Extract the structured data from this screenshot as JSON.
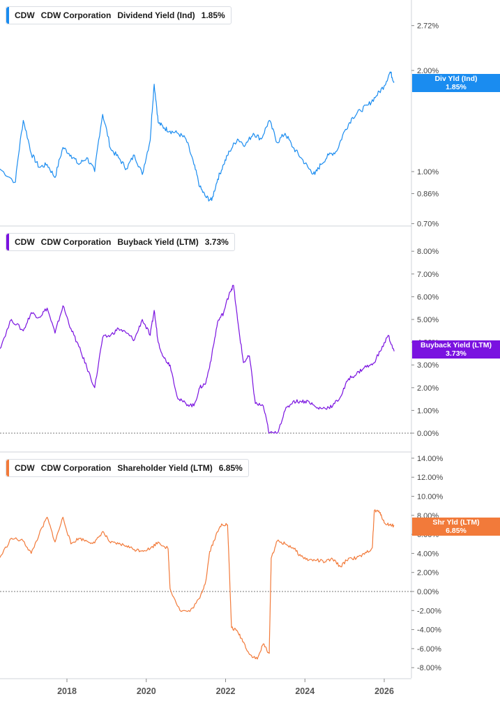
{
  "colors": {
    "dividend": "#1a8cf0",
    "buyback": "#7a12e0",
    "shareholder": "#f27a3a",
    "axis": "#888888",
    "divider": "#cfd3d8"
  },
  "xaxis": {
    "labels": [
      "2018",
      "2020",
      "2022",
      "2024",
      "2026"
    ]
  },
  "chart_data": [
    {
      "type": "line",
      "ticker": "CDW",
      "company": "CDW Corporation",
      "metric": "Dividend Yield (Ind)",
      "value": "1.85%",
      "tag": {
        "line1": "Div Yld (Ind)",
        "line2": "1.85%"
      },
      "ylabels": [
        "2.72%",
        "2.00%",
        "1.00%",
        "0.86%",
        "0.70%"
      ],
      "ylim": [
        0.7,
        2.72
      ],
      "scale": "log",
      "x": [
        2016.3,
        2016.7,
        2016.9,
        2017.1,
        2017.3,
        2017.5,
        2017.7,
        2017.9,
        2018.1,
        2018.3,
        2018.5,
        2018.7,
        2018.9,
        2019.1,
        2019.3,
        2019.5,
        2019.7,
        2019.9,
        2020.1,
        2020.2,
        2020.3,
        2020.45,
        2020.6,
        2020.8,
        2021.0,
        2021.2,
        2021.35,
        2021.5,
        2021.65,
        2021.8,
        2021.95,
        2022.1,
        2022.3,
        2022.5,
        2022.7,
        2022.9,
        2023.1,
        2023.3,
        2023.5,
        2023.7,
        2023.9,
        2024.1,
        2024.25,
        2024.4,
        2024.6,
        2024.8,
        2025.0,
        2025.2,
        2025.4,
        2025.6,
        2025.8,
        2026.0,
        2026.15,
        2026.25
      ],
      "y": [
        1.02,
        0.93,
        1.42,
        1.13,
        1.03,
        1.05,
        0.96,
        1.18,
        1.12,
        1.05,
        1.1,
        1.0,
        1.48,
        1.17,
        1.1,
        1.02,
        1.12,
        0.98,
        1.24,
        1.82,
        1.4,
        1.35,
        1.32,
        1.3,
        1.25,
        1.05,
        0.9,
        0.84,
        0.82,
        0.95,
        1.05,
        1.15,
        1.25,
        1.2,
        1.3,
        1.25,
        1.42,
        1.22,
        1.3,
        1.18,
        1.1,
        1.02,
        0.98,
        1.05,
        1.12,
        1.15,
        1.32,
        1.45,
        1.52,
        1.58,
        1.68,
        1.8,
        1.98,
        1.85
      ]
    },
    {
      "type": "line",
      "ticker": "CDW",
      "company": "CDW Corporation",
      "metric": "Buyback Yield (LTM)",
      "value": "3.73%",
      "tag": {
        "line1": "Buyback Yield (LTM)",
        "line2": "3.73%"
      },
      "ylabels": [
        "8.00%",
        "7.00%",
        "6.00%",
        "5.00%",
        "4.00%",
        "3.00%",
        "2.00%",
        "1.00%",
        "0.00%"
      ],
      "ylim": [
        0,
        8
      ],
      "scale": "linear",
      "x": [
        2016.3,
        2016.6,
        2016.9,
        2017.1,
        2017.3,
        2017.5,
        2017.7,
        2017.9,
        2018.1,
        2018.3,
        2018.5,
        2018.7,
        2018.9,
        2019.1,
        2019.3,
        2019.5,
        2019.7,
        2019.9,
        2020.1,
        2020.2,
        2020.3,
        2020.45,
        2020.6,
        2020.8,
        2021.0,
        2021.2,
        2021.35,
        2021.5,
        2021.65,
        2021.8,
        2021.95,
        2022.1,
        2022.2,
        2022.3,
        2022.45,
        2022.6,
        2022.75,
        2022.95,
        2023.1,
        2023.3,
        2023.5,
        2023.7,
        2023.9,
        2024.1,
        2024.3,
        2024.5,
        2024.7,
        2024.9,
        2025.1,
        2025.3,
        2025.5,
        2025.7,
        2025.9,
        2026.1,
        2026.25
      ],
      "y": [
        3.7,
        5.0,
        4.5,
        5.3,
        5.1,
        5.5,
        4.4,
        5.6,
        4.6,
        3.8,
        2.9,
        2.0,
        4.2,
        4.3,
        4.6,
        4.4,
        4.1,
        5.0,
        4.3,
        5.4,
        4.0,
        3.3,
        3.0,
        1.5,
        1.3,
        1.2,
        2.0,
        2.2,
        3.4,
        4.9,
        5.3,
        6.2,
        6.5,
        5.0,
        3.1,
        3.4,
        1.3,
        1.2,
        0.0,
        0.0,
        1.0,
        1.4,
        1.4,
        1.4,
        1.1,
        1.1,
        1.2,
        1.6,
        2.4,
        2.6,
        2.9,
        3.0,
        3.6,
        4.3,
        3.6
      ]
    },
    {
      "type": "line",
      "ticker": "CDW",
      "company": "CDW Corporation",
      "metric": "Shareholder Yield (LTM)",
      "value": "6.85%",
      "tag": {
        "line1": "Shr Yld (LTM)",
        "line2": "6.85%"
      },
      "ylabels": [
        "14.00%",
        "12.00%",
        "10.00%",
        "8.00%",
        "6.00%",
        "4.00%",
        "2.00%",
        "0.00%",
        "-2.00%",
        "-4.00%",
        "-6.00%",
        "-8.00%"
      ],
      "ylim": [
        -8,
        14
      ],
      "scale": "linear",
      "x": [
        2016.3,
        2016.6,
        2016.9,
        2017.1,
        2017.3,
        2017.5,
        2017.7,
        2017.9,
        2018.1,
        2018.3,
        2018.5,
        2018.7,
        2018.9,
        2019.1,
        2019.3,
        2019.5,
        2019.7,
        2019.9,
        2020.1,
        2020.3,
        2020.55,
        2020.6,
        2020.85,
        2021.1,
        2021.35,
        2021.5,
        2021.6,
        2021.75,
        2021.9,
        2022.05,
        2022.15,
        2022.3,
        2022.45,
        2022.6,
        2022.8,
        2022.95,
        2023.1,
        2023.15,
        2023.3,
        2023.5,
        2023.7,
        2023.9,
        2024.1,
        2024.3,
        2024.5,
        2024.7,
        2024.9,
        2025.1,
        2025.3,
        2025.5,
        2025.7,
        2025.75,
        2025.9,
        2026.0,
        2026.15,
        2026.25
      ],
      "y": [
        3.5,
        5.6,
        5.3,
        4.0,
        6.0,
        7.8,
        5.2,
        7.8,
        5.0,
        5.6,
        5.3,
        5.1,
        6.3,
        5.1,
        5.0,
        4.8,
        4.4,
        4.3,
        4.5,
        5.2,
        4.5,
        0.3,
        -2.0,
        -2.1,
        -0.7,
        1.1,
        4.2,
        5.8,
        7.1,
        7.0,
        -3.8,
        -4.2,
        -5.3,
        -6.6,
        -7.1,
        -5.5,
        -6.5,
        3.5,
        5.3,
        5.0,
        4.6,
        3.7,
        3.3,
        3.3,
        3.1,
        3.4,
        2.6,
        3.5,
        3.5,
        3.9,
        4.6,
        8.5,
        8.3,
        7.2,
        7.0,
        6.9
      ]
    }
  ]
}
